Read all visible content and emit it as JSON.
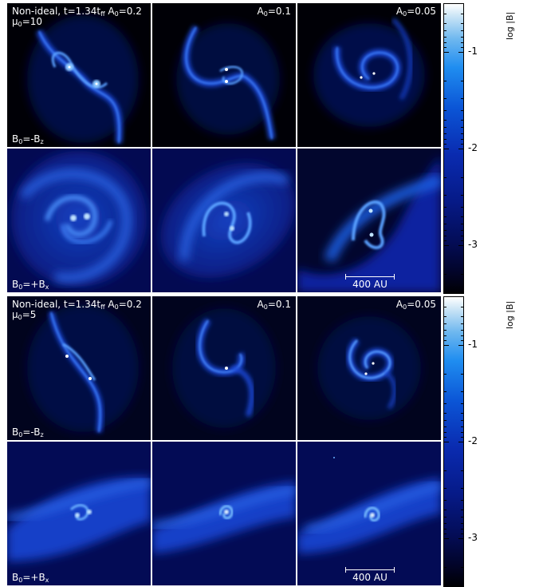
{
  "figure": {
    "colorbar_title": "log |B|",
    "colorbar_ticks": [
      "-1",
      "-2",
      "-3"
    ]
  },
  "top": {
    "title_line1": "Non-ideal, t=1.34t",
    "title_sub": "ff",
    "title_tail": " A",
    "title_tail_sub": "0",
    "title_tail_val": "=0.2",
    "mu_prefix": "μ",
    "mu_sub": "0",
    "mu_val": "=10",
    "col2_prefix": "A",
    "col2_sub": "0",
    "col2_val": "=0.1",
    "col3_prefix": "A",
    "col3_sub": "0",
    "col3_val": "=0.05",
    "row1_b_prefix": "B",
    "row1_b_sub": "0",
    "row1_b_mid": "=-B",
    "row1_b_sub2": "z",
    "row2_b_prefix": "B",
    "row2_b_sub": "0",
    "row2_b_mid": "=+B",
    "row2_b_sub2": "x",
    "scale_label": "400 AU"
  },
  "bottom": {
    "title_line1": "Non-ideal, t=1.34t",
    "title_sub": "ff",
    "title_tail": " A",
    "title_tail_sub": "0",
    "title_tail_val": "=0.2",
    "mu_prefix": "μ",
    "mu_sub": "0",
    "mu_val": "=5",
    "col2_prefix": "A",
    "col2_sub": "0",
    "col2_val": "=0.1",
    "col3_prefix": "A",
    "col3_sub": "0",
    "col3_val": "=0.05",
    "row1_b_prefix": "B",
    "row1_b_sub": "0",
    "row1_b_mid": "=-B",
    "row1_b_sub2": "z",
    "row2_b_prefix": "B",
    "row2_b_sub": "0",
    "row2_b_mid": "=+B",
    "row2_b_sub2": "x",
    "scale_label": "400 AU"
  },
  "colors": {
    "background": "#000004",
    "spiral": "#1f6ff0",
    "core": "#bfe2ff",
    "separator": "#ffffff"
  }
}
